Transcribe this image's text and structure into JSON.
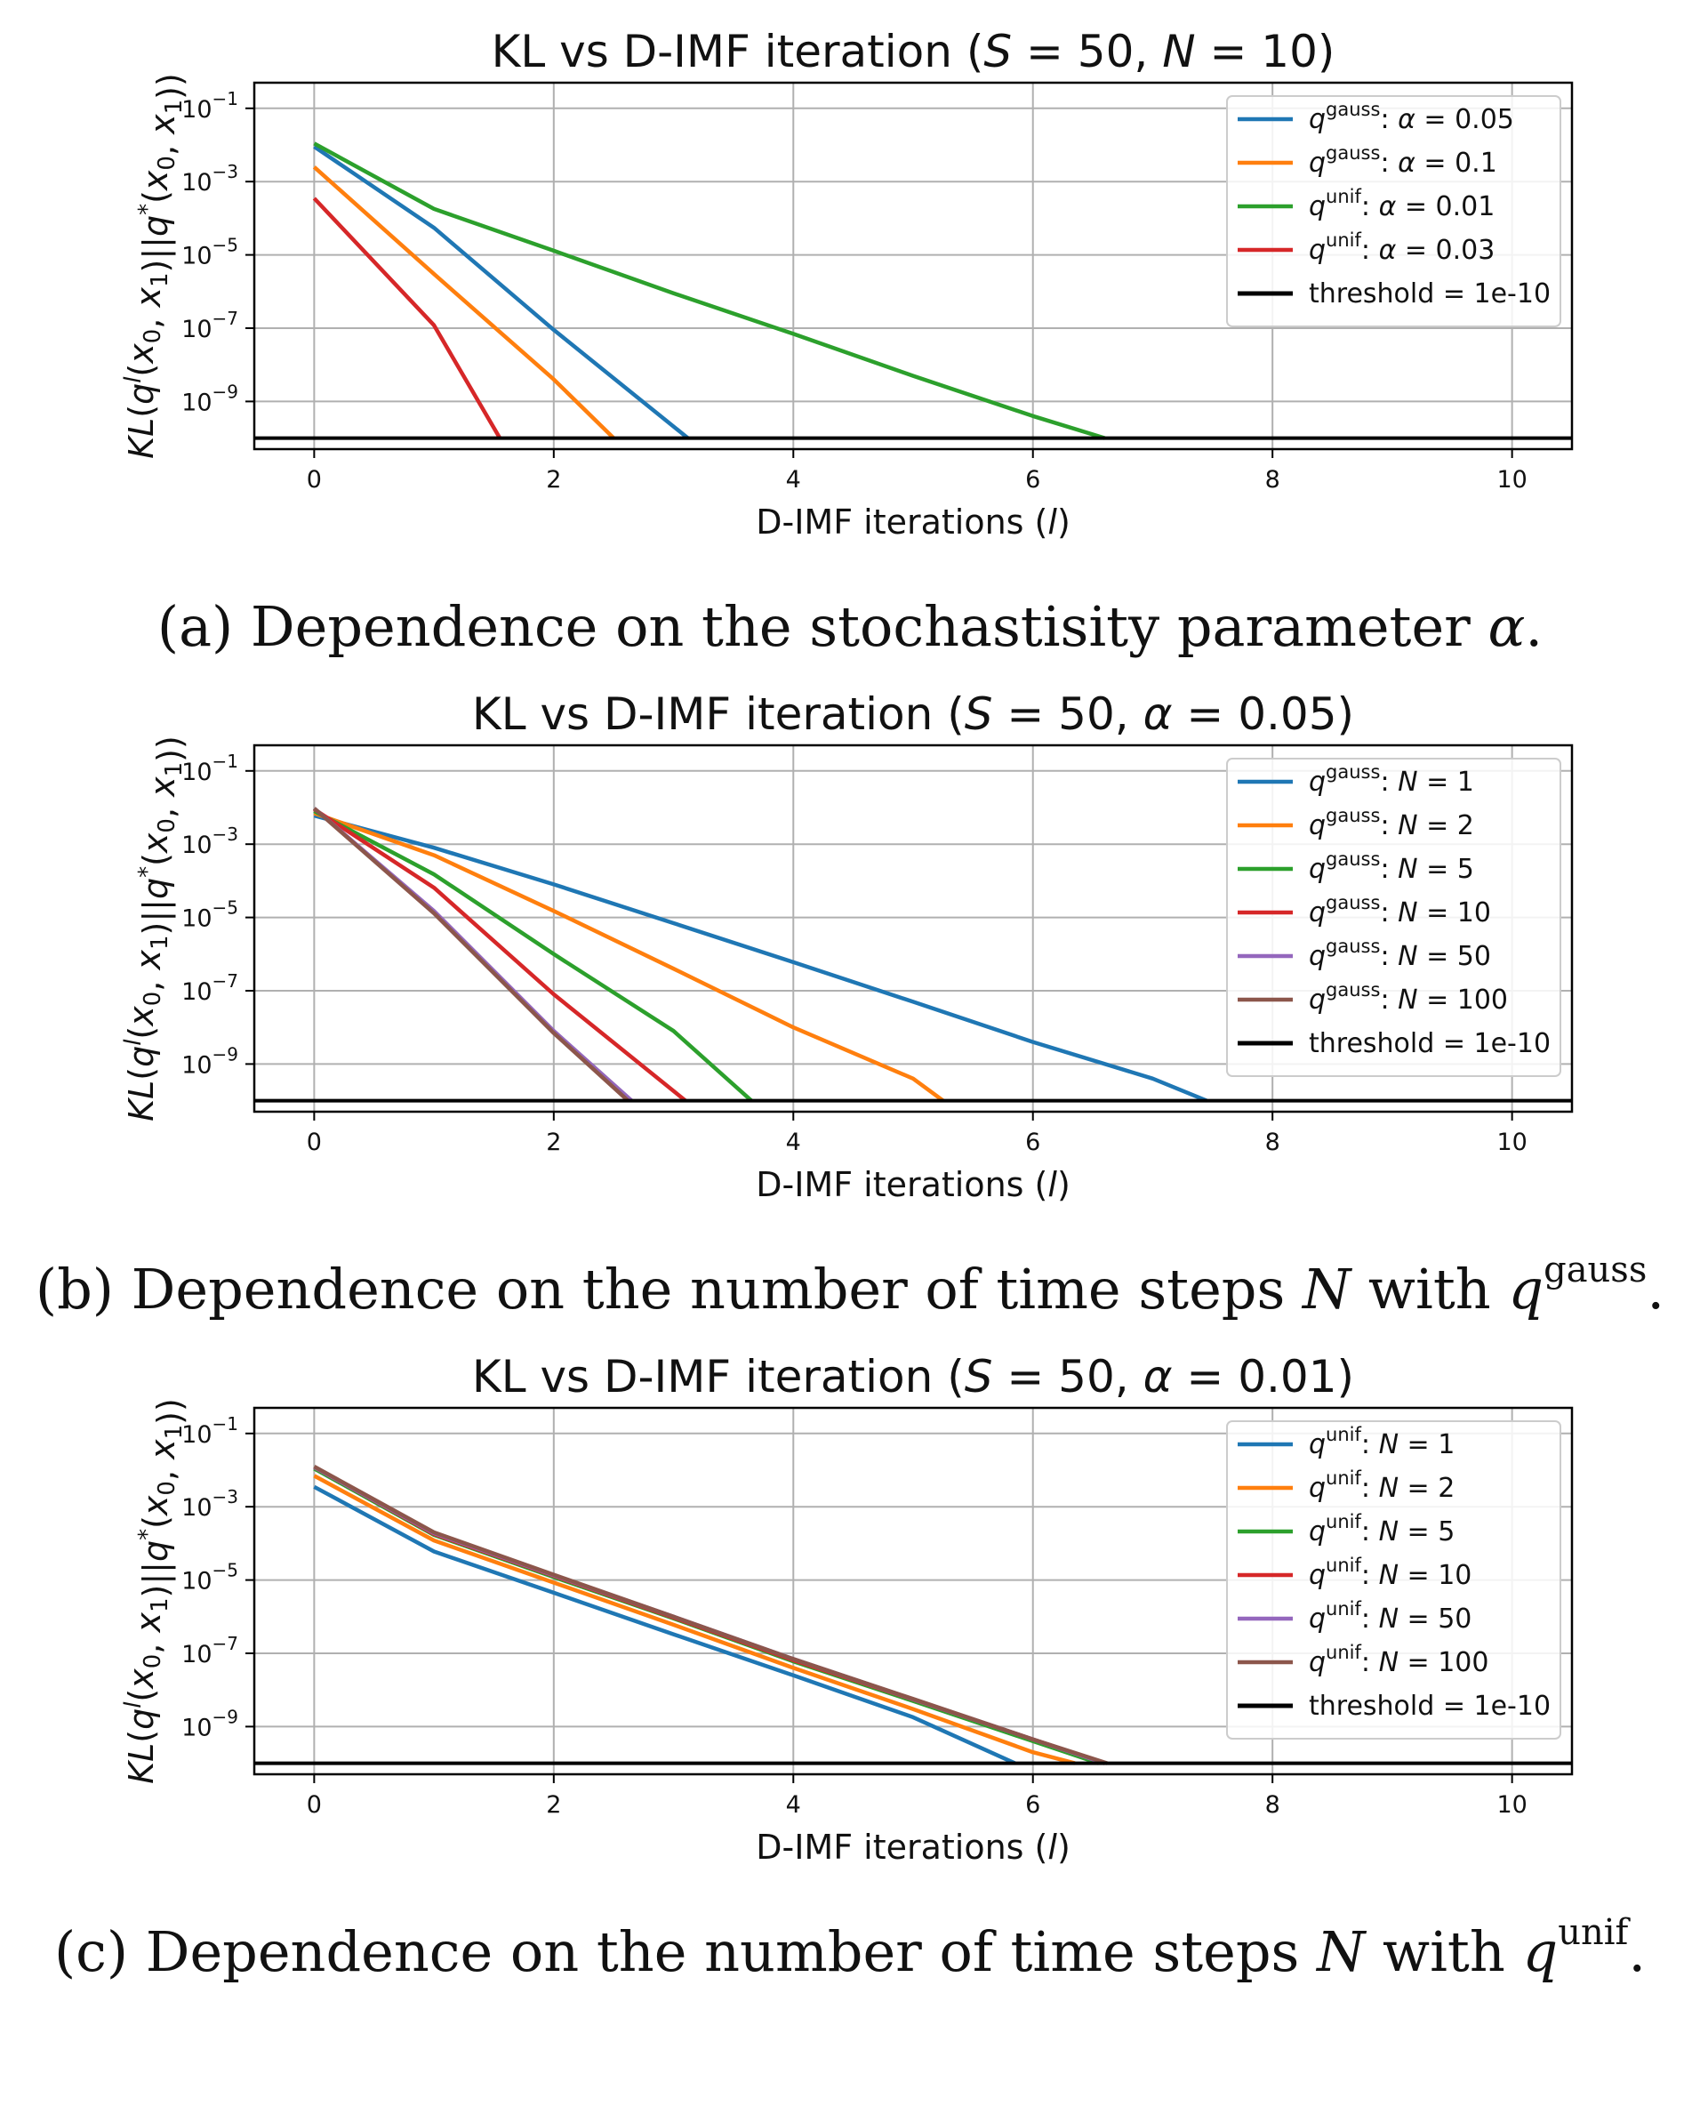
{
  "captions": [
    {
      "prefix": "(a) Dependence on the stochastisity parameter ",
      "math": "α",
      "suffix": ".",
      "sup": ""
    },
    {
      "prefix": "(b) Dependence on the number of time steps ",
      "math": "N",
      "suffix": " with ",
      "qvar": "q",
      "sup": "gauss",
      "end": "."
    },
    {
      "prefix": "(c) Dependence on the number of time steps ",
      "math": "N",
      "suffix": " with ",
      "qvar": "q",
      "sup": "unif",
      "end": "."
    }
  ],
  "colors": {
    "blue": "#1f77b4",
    "orange": "#ff7f0e",
    "green": "#2ca02c",
    "red": "#d62728",
    "purple": "#9467bd",
    "brown": "#8c564b",
    "black": "#000000"
  },
  "chart_data": [
    {
      "type": "line",
      "title": "KL vs D-IMF iteration (S = 50, N = 10)",
      "xlabel": "D-IMF iterations (l)",
      "ylabel": "KL(q^l(x0, x1)||q*(x0, x1))",
      "yscale": "log",
      "xlim": [
        -0.5,
        10.5
      ],
      "ylim": [
        5e-11,
        0.5
      ],
      "xticks": [
        0,
        2,
        4,
        6,
        8,
        10
      ],
      "yticks": [
        {
          "v": 0.1,
          "e": "−1"
        },
        {
          "v": 0.001,
          "e": "−3"
        },
        {
          "v": 1e-05,
          "e": "−5"
        },
        {
          "v": 1e-07,
          "e": "−7"
        },
        {
          "v": 1e-09,
          "e": "−9"
        }
      ],
      "grid": true,
      "legend_position": "upper right",
      "threshold": {
        "value": 1e-10,
        "label": "threshold = 1e-10"
      },
      "series": [
        {
          "name": "q^gauss: α = 0.05",
          "q": "gauss",
          "param": "α = 0.05",
          "color": "blue",
          "x": [
            0,
            1,
            2,
            3.12
          ],
          "y": [
            0.009,
            5.5e-05,
            9e-08,
            1e-10
          ]
        },
        {
          "name": "q^gauss: α = 0.1",
          "q": "gauss",
          "param": "α = 0.1",
          "color": "orange",
          "x": [
            0,
            1,
            2,
            2.5
          ],
          "y": [
            0.0025,
            3e-06,
            4e-09,
            1e-10
          ]
        },
        {
          "name": "q^unif: α = 0.01",
          "q": "unif",
          "param": "α = 0.01",
          "color": "green",
          "x": [
            0,
            1,
            2,
            3,
            4,
            5,
            6,
            6.6
          ],
          "y": [
            0.011,
            0.00018,
            1.3e-05,
            9e-07,
            7e-08,
            5e-09,
            4e-10,
            1e-10
          ]
        },
        {
          "name": "q^unif: α = 0.03",
          "q": "unif",
          "param": "α = 0.03",
          "color": "red",
          "x": [
            0,
            1,
            1.55
          ],
          "y": [
            0.00035,
            1.2e-07,
            1e-10
          ]
        }
      ]
    },
    {
      "type": "line",
      "title": "KL vs D-IMF iteration (S = 50, α = 0.05)",
      "xlabel": "D-IMF iterations (l)",
      "ylabel": "KL(q^l(x0, x1)||q*(x0, x1))",
      "yscale": "log",
      "xlim": [
        -0.5,
        10.5
      ],
      "ylim": [
        5e-11,
        0.5
      ],
      "xticks": [
        0,
        2,
        4,
        6,
        8,
        10
      ],
      "yticks": [
        {
          "v": 0.1,
          "e": "−1"
        },
        {
          "v": 0.001,
          "e": "−3"
        },
        {
          "v": 1e-05,
          "e": "−5"
        },
        {
          "v": 1e-07,
          "e": "−7"
        },
        {
          "v": 1e-09,
          "e": "−9"
        }
      ],
      "grid": true,
      "legend_position": "upper right",
      "threshold": {
        "value": 1e-10,
        "label": "threshold = 1e-10"
      },
      "series": [
        {
          "name": "q^gauss: N = 1",
          "q": "gauss",
          "param": "N = 1",
          "color": "blue",
          "x": [
            0,
            1,
            2,
            3,
            4,
            5,
            6,
            7,
            7.45
          ],
          "y": [
            0.006,
            0.0008,
            8e-05,
            7e-06,
            6e-07,
            5e-08,
            4e-09,
            4e-10,
            1e-10
          ]
        },
        {
          "name": "q^gauss: N = 2",
          "q": "gauss",
          "param": "N = 2",
          "color": "orange",
          "x": [
            0,
            1,
            2,
            3,
            4,
            5,
            5.25
          ],
          "y": [
            0.007,
            0.0005,
            1.5e-05,
            4e-07,
            1e-08,
            4e-10,
            1e-10
          ]
        },
        {
          "name": "q^gauss: N = 5",
          "q": "gauss",
          "param": "N = 5",
          "color": "green",
          "x": [
            0,
            1,
            2,
            3,
            3.65
          ],
          "y": [
            0.008,
            0.00015,
            1e-06,
            8e-09,
            1e-10
          ]
        },
        {
          "name": "q^gauss: N = 10",
          "q": "gauss",
          "param": "N = 10",
          "color": "red",
          "x": [
            0,
            1,
            2,
            3.1
          ],
          "y": [
            0.009,
            6.5e-05,
            8e-08,
            1e-10
          ]
        },
        {
          "name": "q^gauss: N = 50",
          "q": "gauss",
          "param": "N = 50",
          "color": "purple",
          "x": [
            0,
            1,
            2,
            2.65
          ],
          "y": [
            0.0095,
            1.5e-05,
            8e-09,
            1e-10
          ]
        },
        {
          "name": "q^gauss: N = 100",
          "q": "gauss",
          "param": "N = 100",
          "color": "brown",
          "x": [
            0,
            1,
            2,
            2.62
          ],
          "y": [
            0.0095,
            1.3e-05,
            7e-09,
            1e-10
          ]
        }
      ]
    },
    {
      "type": "line",
      "title": "KL vs D-IMF iteration (S = 50, α = 0.01)",
      "xlabel": "D-IMF iterations (l)",
      "ylabel": "KL(q^l(x0, x1)||q*(x0, x1))",
      "yscale": "log",
      "xlim": [
        -0.5,
        10.5
      ],
      "ylim": [
        5e-11,
        0.5
      ],
      "xticks": [
        0,
        2,
        4,
        6,
        8,
        10
      ],
      "yticks": [
        {
          "v": 0.1,
          "e": "−1"
        },
        {
          "v": 0.001,
          "e": "−3"
        },
        {
          "v": 1e-05,
          "e": "−5"
        },
        {
          "v": 1e-07,
          "e": "−7"
        },
        {
          "v": 1e-09,
          "e": "−9"
        }
      ],
      "grid": true,
      "legend_position": "upper right",
      "threshold": {
        "value": 1e-10,
        "label": "threshold = 1e-10"
      },
      "series": [
        {
          "name": "q^unif: N = 1",
          "q": "unif",
          "param": "N = 1",
          "color": "blue",
          "x": [
            0,
            1,
            2,
            3,
            4,
            5,
            5.85
          ],
          "y": [
            0.0035,
            6e-05,
            4.5e-06,
            3.3e-07,
            2.5e-08,
            1.8e-09,
            1e-10
          ]
        },
        {
          "name": "q^unif: N = 2",
          "q": "unif",
          "param": "N = 2",
          "color": "orange",
          "x": [
            0,
            1,
            2,
            3,
            4,
            5,
            6,
            6.35
          ],
          "y": [
            0.007,
            0.00012,
            8.5e-06,
            6e-07,
            4e-08,
            3e-09,
            2e-10,
            1e-10
          ]
        },
        {
          "name": "q^unif: N = 5",
          "q": "unif",
          "param": "N = 5",
          "color": "green",
          "x": [
            0,
            1,
            2,
            3,
            4,
            5,
            6,
            6.55
          ],
          "y": [
            0.011,
            0.00017,
            1.2e-05,
            9e-07,
            6e-08,
            5e-09,
            4e-10,
            1e-10
          ]
        },
        {
          "name": "q^unif: N = 10",
          "q": "unif",
          "param": "N = 10",
          "color": "red",
          "x": [
            0,
            1,
            2,
            3,
            4,
            5,
            6,
            6.6
          ],
          "y": [
            0.012,
            0.00018,
            1.3e-05,
            9.5e-07,
            6.5e-08,
            5.5e-09,
            4.5e-10,
            1e-10
          ]
        },
        {
          "name": "q^unif: N = 50",
          "q": "unif",
          "param": "N = 50",
          "color": "purple",
          "x": [
            0,
            1,
            2,
            3,
            4,
            5,
            6,
            6.6
          ],
          "y": [
            0.012,
            0.00019,
            1.35e-05,
            1e-06,
            7e-08,
            5.6e-09,
            4.5e-10,
            1e-10
          ]
        },
        {
          "name": "q^unif: N = 100",
          "q": "unif",
          "param": "N = 100",
          "color": "brown",
          "x": [
            0,
            1,
            2,
            3,
            4,
            5,
            6,
            6.62
          ],
          "y": [
            0.0125,
            0.0002,
            1.4e-05,
            1e-06,
            7e-08,
            5.7e-09,
            4.5e-10,
            1e-10
          ]
        }
      ]
    }
  ]
}
